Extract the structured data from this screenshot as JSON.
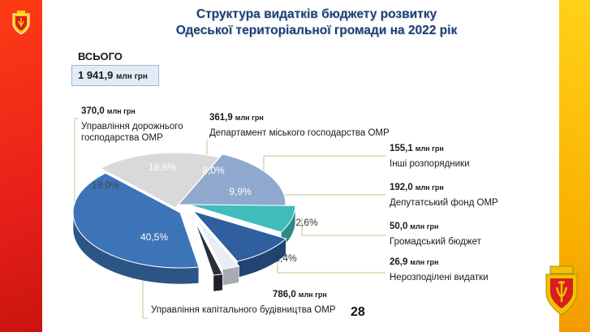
{
  "slide": {
    "title_line1": "Структура видатків бюджету розвитку",
    "title_line2": "Одеської територіальної громади на 2022 рік",
    "total_label": "ВСЬОГО",
    "total_value": "1 941,9",
    "total_unit": "млн грн",
    "page_number": "28",
    "colors": {
      "left_band": "#e8201a",
      "right_band": "#f9b000",
      "title": "#1a3f7a"
    }
  },
  "chart_data": {
    "type": "pie",
    "title": "Структура видатків бюджету розвитку Одеської територіальної громади на 2022 рік",
    "unit": "млн грн",
    "total": 1941.9,
    "slices": [
      {
        "name": "Управління капітального будівництва ОМР",
        "value": 786.0,
        "value_label": "786,0",
        "percent": 40.5,
        "percent_label": "40,5%",
        "color": "#3d74b8"
      },
      {
        "name": "Управління дорожнього господарства ОМР",
        "value": 370.0,
        "value_label": "370,0",
        "percent": 19.0,
        "percent_label": "19,0%",
        "color": "#d9d9d9"
      },
      {
        "name": "Департамент міського господарства ОМР",
        "value": 361.9,
        "value_label": "361,9",
        "percent": 18.6,
        "percent_label": "18,6%",
        "color": "#8fa9cf"
      },
      {
        "name": "Інші розпорядники",
        "value": 155.1,
        "value_label": "155,1",
        "percent": 8.0,
        "percent_label": "8,0%",
        "color": "#3fbdbd"
      },
      {
        "name": "Депутатський фонд ОМР",
        "value": 192.0,
        "value_label": "192,0",
        "percent": 9.9,
        "percent_label": "9,9%",
        "color": "#2f5f9e"
      },
      {
        "name": "Громадський бюджет",
        "value": 50.0,
        "value_label": "50,0",
        "percent": 2.6,
        "percent_label": "2,6%",
        "color": "#e9eef5"
      },
      {
        "name": "Нерозподілені видатки",
        "value": 26.9,
        "value_label": "26,9",
        "percent": 1.4,
        "percent_label": "1,4%",
        "color": "#2b2f3a"
      }
    ]
  }
}
